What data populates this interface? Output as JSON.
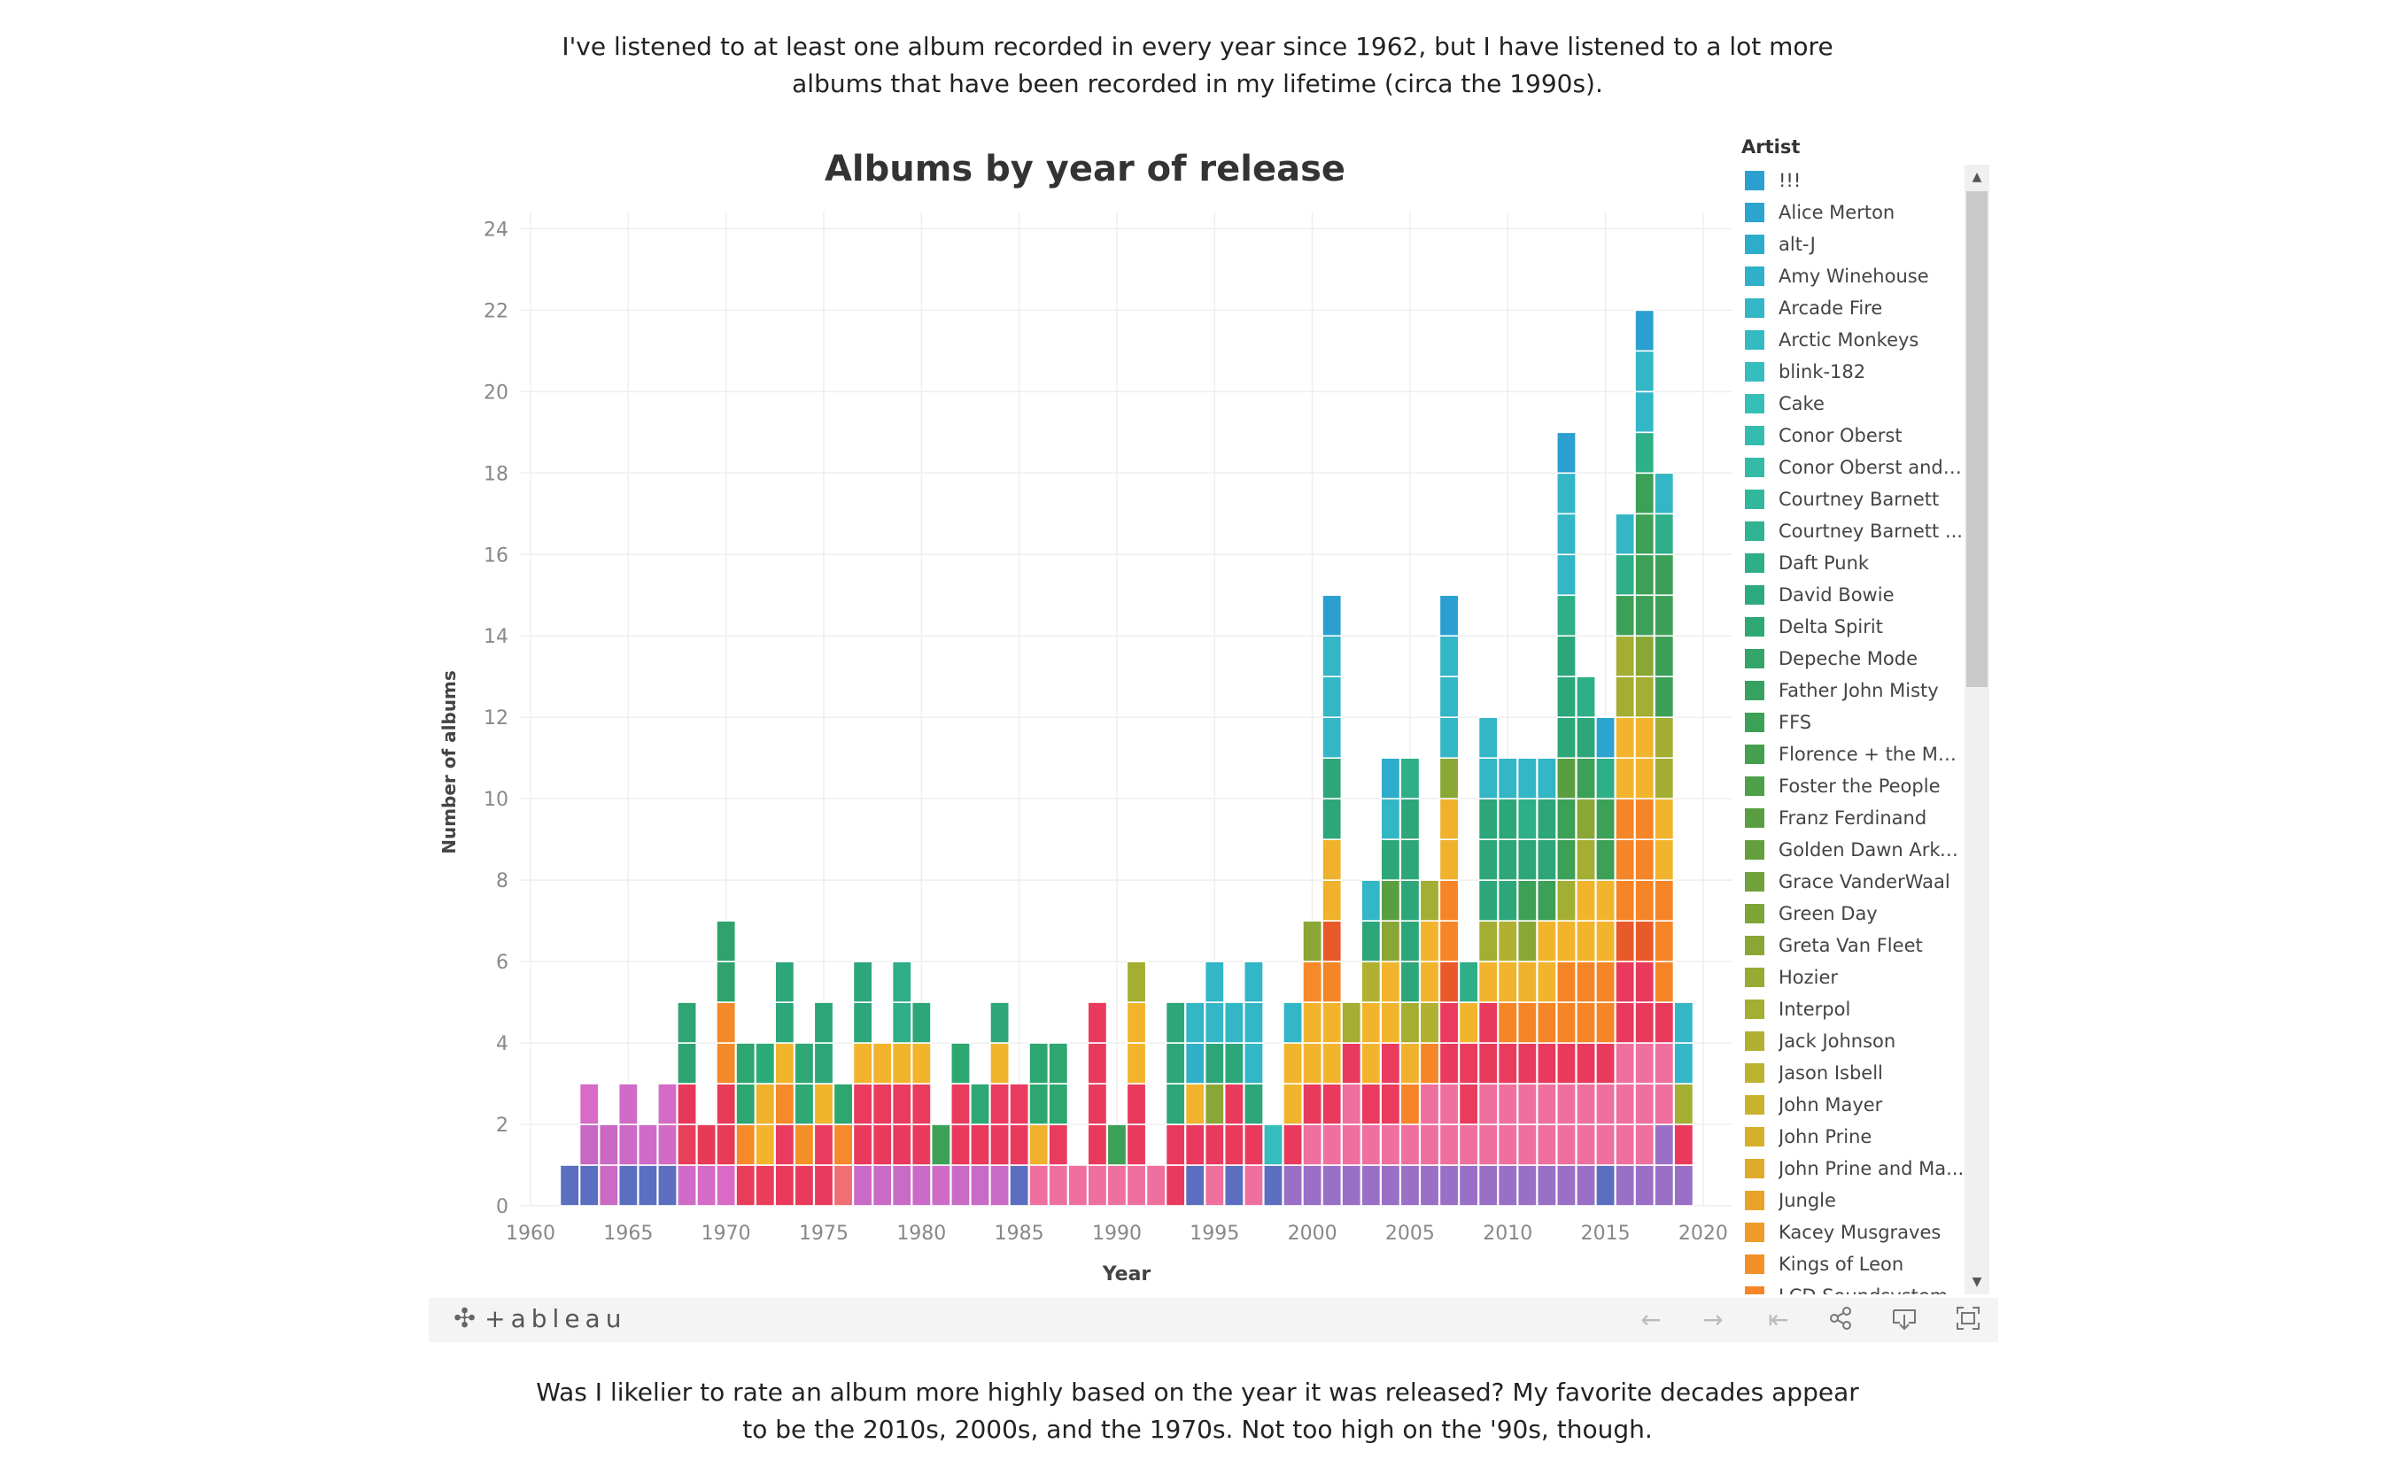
{
  "intro_text": "I've listened to at least one album recorded in every year since 1962, but I have listened to a lot more albums that have been recorded in my lifetime (circa the 1990s).",
  "outro_text": "Was I likelier to rate an album more highly based on the year it was released? My favorite decades appear to be the 2010s, 2000s, and the 1970s. Not too high on the '90s, though.",
  "legend": {
    "title": "Artist",
    "items": [
      {
        "label": "!!!",
        "color": "#2a9fd0"
      },
      {
        "label": "Alice Merton",
        "color": "#2ba5cf"
      },
      {
        "label": "alt-J",
        "color": "#2eaccc"
      },
      {
        "label": "Amy Winehouse",
        "color": "#30b1c9"
      },
      {
        "label": "Arcade Fire",
        "color": "#33b6c6"
      },
      {
        "label": "Arctic Monkeys",
        "color": "#35bac2"
      },
      {
        "label": "blink-182",
        "color": "#36bdbe"
      },
      {
        "label": "Cake",
        "color": "#36bfb7"
      },
      {
        "label": "Conor Oberst",
        "color": "#34bdae"
      },
      {
        "label": "Conor Oberst and t...",
        "color": "#33bba6"
      },
      {
        "label": "Courtney Barnett",
        "color": "#31b79c"
      },
      {
        "label": "Courtney Barnett ...",
        "color": "#2fb392"
      },
      {
        "label": "Daft Punk",
        "color": "#2eaf88"
      },
      {
        "label": "David Bowie",
        "color": "#2eab7e"
      },
      {
        "label": "Delta Spirit",
        "color": "#30a874"
      },
      {
        "label": "Depeche Mode",
        "color": "#33a56a"
      },
      {
        "label": "Father John Misty",
        "color": "#37a260"
      },
      {
        "label": "FFS",
        "color": "#3da057"
      },
      {
        "label": "Florence + the Mac...",
        "color": "#449f4f"
      },
      {
        "label": "Foster the People",
        "color": "#4e9f48"
      },
      {
        "label": "Franz Ferdinand",
        "color": "#599f42"
      },
      {
        "label": "Golden Dawn Arke...",
        "color": "#659f3d"
      },
      {
        "label": "Grace VanderWaal",
        "color": "#71a13a"
      },
      {
        "label": "Green Day",
        "color": "#7ea438"
      },
      {
        "label": "Greta Van Fleet",
        "color": "#8aa736"
      },
      {
        "label": "Hozier",
        "color": "#97ab34"
      },
      {
        "label": "Interpol",
        "color": "#a3ae32"
      },
      {
        "label": "Jack Johnson",
        "color": "#b0b130"
      },
      {
        "label": "Jason Isbell",
        "color": "#bdb22e"
      },
      {
        "label": "John Mayer",
        "color": "#c9b22d"
      },
      {
        "label": "John Prine",
        "color": "#d4b02c"
      },
      {
        "label": "John Prine and Ma...",
        "color": "#deab2b"
      },
      {
        "label": "Jungle",
        "color": "#e8a42a"
      },
      {
        "label": "Kacey Musgraves",
        "color": "#ef9b29"
      },
      {
        "label": "Kings of Leon",
        "color": "#f39028"
      },
      {
        "label": "LCD Soundsystem",
        "color": "#f58527"
      }
    ]
  },
  "chart_data": {
    "type": "bar",
    "stacked": true,
    "title": "Albums by year of release",
    "xlabel": "Year",
    "ylabel": "Number of albums",
    "xlim": [
      1959.5,
      2021.5
    ],
    "ylim": [
      0,
      24.4
    ],
    "x_ticks": [
      1960,
      1965,
      1970,
      1975,
      1980,
      1985,
      1990,
      1995,
      2000,
      2005,
      2010,
      2015,
      2020
    ],
    "y_ticks": [
      0,
      2,
      4,
      6,
      8,
      10,
      12,
      14,
      16,
      18,
      20,
      22,
      24
    ],
    "grid": true,
    "legend_position": "right",
    "bars": [
      {
        "year": 1962,
        "segments": [
          "#5b6ebf"
        ]
      },
      {
        "year": 1963,
        "segments": [
          "#5b6ebf",
          "#c967c4",
          "#d76bc6"
        ]
      },
      {
        "year": 1964,
        "segments": [
          "#cb6ac5",
          "#c969c5"
        ]
      },
      {
        "year": 1965,
        "segments": [
          "#5b6ebf",
          "#cc68c6",
          "#d06bc7"
        ]
      },
      {
        "year": 1966,
        "segments": [
          "#5b6ebf",
          "#cf6ac6"
        ]
      },
      {
        "year": 1967,
        "segments": [
          "#5b6ebf",
          "#d16bc6",
          "#d46cc6"
        ]
      },
      {
        "year": 1968,
        "segments": [
          "#d06bc7",
          "#e8405a",
          "#e8385a",
          "#2ea473",
          "#2fa474"
        ]
      },
      {
        "year": 1969,
        "segments": [
          "#d46bc6",
          "#e73a58"
        ]
      },
      {
        "year": 1970,
        "segments": [
          "#d96bc6",
          "#e73b57",
          "#e73b57",
          "#f38928",
          "#f38928",
          "#2fa36b",
          "#2fa36b"
        ]
      },
      {
        "year": 1971,
        "segments": [
          "#e83d5a",
          "#f68a2a",
          "#2ea66f",
          "#2ea66f"
        ]
      },
      {
        "year": 1972,
        "segments": [
          "#ea3d5b",
          "#f3b42d",
          "#f0b12c",
          "#2daa79"
        ]
      },
      {
        "year": 1973,
        "segments": [
          "#e93a5e",
          "#ea3b5f",
          "#f68a2a",
          "#f3b42d",
          "#2da67a",
          "#2da67a"
        ]
      },
      {
        "year": 1974,
        "segments": [
          "#e93a5e",
          "#f59028",
          "#2ea875",
          "#2ea875"
        ]
      },
      {
        "year": 1975,
        "segments": [
          "#e93a5e",
          "#ea3b5f",
          "#f3b42d",
          "#2da67a",
          "#2da67a"
        ]
      },
      {
        "year": 1976,
        "segments": [
          "#ef6f72",
          "#f68a2a",
          "#2ea66f"
        ]
      },
      {
        "year": 1977,
        "segments": [
          "#c96ac7",
          "#e93a5e",
          "#ea3b5f",
          "#f3b42d",
          "#2da67a",
          "#2da67a"
        ]
      },
      {
        "year": 1978,
        "segments": [
          "#c96ac7",
          "#e93a5e",
          "#ea3b5f",
          "#f3b42d"
        ]
      },
      {
        "year": 1979,
        "segments": [
          "#c96ac7",
          "#e93a5e",
          "#ea3b5f",
          "#f3b42d",
          "#2eaf88",
          "#2eaf88"
        ]
      },
      {
        "year": 1980,
        "segments": [
          "#c96ac7",
          "#e93a5e",
          "#ea3b5f",
          "#f3b42d",
          "#2da67a"
        ]
      },
      {
        "year": 1981,
        "segments": [
          "#d06bc7",
          "#3da057"
        ]
      },
      {
        "year": 1982,
        "segments": [
          "#c96ac7",
          "#e93a5e",
          "#ea3b5f",
          "#2ea66f"
        ]
      },
      {
        "year": 1983,
        "segments": [
          "#c96ac7",
          "#e93a5e",
          "#2ea875"
        ]
      },
      {
        "year": 1984,
        "segments": [
          "#c96ac7",
          "#e93a5e",
          "#ea3b5f",
          "#f3b42d",
          "#2da67a"
        ]
      },
      {
        "year": 1985,
        "segments": [
          "#5b6ebf",
          "#e93a5e",
          "#ea3b5f"
        ]
      },
      {
        "year": 1986,
        "segments": [
          "#ef6f9e",
          "#f0b12c",
          "#2ea66f",
          "#2ea66f"
        ]
      },
      {
        "year": 1987,
        "segments": [
          "#ef6f9e",
          "#ea3b5f",
          "#2ea66f",
          "#2ea66f"
        ]
      },
      {
        "year": 1988,
        "segments": [
          "#ef6f9e"
        ]
      },
      {
        "year": 1989,
        "segments": [
          "#ef6f9e",
          "#e93a5e",
          "#e93a5e",
          "#e93a5e",
          "#e93a5e"
        ]
      },
      {
        "year": 1990,
        "segments": [
          "#ef6f9e",
          "#3da057"
        ]
      },
      {
        "year": 1991,
        "segments": [
          "#ef6f9e",
          "#e93a5e",
          "#e93a5e",
          "#f3b42d",
          "#f3b42d",
          "#a3ae32"
        ]
      },
      {
        "year": 1992,
        "segments": [
          "#ef6f9e"
        ]
      },
      {
        "year": 1993,
        "segments": [
          "#e93a5e",
          "#e93a5e",
          "#2da67a",
          "#2da67a",
          "#2da67a"
        ]
      },
      {
        "year": 1994,
        "segments": [
          "#5b6ebf",
          "#e93a5e",
          "#f3b42d",
          "#30b1c9",
          "#33b6c6"
        ]
      },
      {
        "year": 1995,
        "segments": [
          "#ef6f9e",
          "#e93a5e",
          "#8aa736",
          "#2da67a",
          "#33b6c6",
          "#33b6c6"
        ]
      },
      {
        "year": 1996,
        "segments": [
          "#5b6ebf",
          "#e93a5e",
          "#e93a5e",
          "#2da67a",
          "#33b6c6"
        ]
      },
      {
        "year": 1997,
        "segments": [
          "#ef6f9e",
          "#e93a5e",
          "#2da67a",
          "#33b6c6",
          "#33b6c6",
          "#33b6c6"
        ]
      },
      {
        "year": 1998,
        "segments": [
          "#5b6ebf",
          "#36bdbe"
        ]
      },
      {
        "year": 1999,
        "segments": [
          "#9a6fc6",
          "#e93a5e",
          "#f3b42d",
          "#f3b42d",
          "#33b6c6"
        ]
      },
      {
        "year": 2000,
        "segments": [
          "#9a6fc6",
          "#ef6f9e",
          "#e93a5e",
          "#f3b42d",
          "#f3b42d",
          "#f68a2a",
          "#8aa736"
        ]
      },
      {
        "year": 2001,
        "segments": [
          "#9a6fc6",
          "#ef6f9e",
          "#e93a5e",
          "#f3b42d",
          "#f3b42d",
          "#f58527",
          "#e85a2a",
          "#f0b12c",
          "#f0b12c",
          "#2da67a",
          "#2da67a",
          "#33b6c6",
          "#33b6c6",
          "#33b6c6",
          "#2a9fd0"
        ]
      },
      {
        "year": 2002,
        "segments": [
          "#9a6fc6",
          "#ef6f9e",
          "#ef6f9e",
          "#e93a5e",
          "#a3ae32"
        ]
      },
      {
        "year": 2003,
        "segments": [
          "#9a6fc6",
          "#ef6f9e",
          "#ea3b5f",
          "#f3b42d",
          "#f3b42d",
          "#b0b130",
          "#2da67a",
          "#33b6c6"
        ]
      },
      {
        "year": 2004,
        "segments": [
          "#9a6fc6",
          "#ef6f9e",
          "#ea3b5f",
          "#ea3b5f",
          "#f3b42d",
          "#f3b42d",
          "#8aa736",
          "#599f42",
          "#2da67a",
          "#33b6c6",
          "#2eaccc"
        ]
      },
      {
        "year": 2005,
        "segments": [
          "#9a6fc6",
          "#ef6f9e",
          "#f58527",
          "#f0b12c",
          "#a3ae32",
          "#2da67a",
          "#2da67a",
          "#2da67a",
          "#2da67a",
          "#2da67a",
          "#2eaf88"
        ]
      },
      {
        "year": 2006,
        "segments": [
          "#9a6fc6",
          "#ef6f9e",
          "#ef6f9e",
          "#f58527",
          "#b0b130",
          "#f3b42d",
          "#f3b42d",
          "#a3ae32"
        ]
      },
      {
        "year": 2007,
        "segments": [
          "#9a6fc6",
          "#ef6f9e",
          "#ef6f9e",
          "#e93a5e",
          "#ea3b5f",
          "#e85a2a",
          "#f58527",
          "#f58527",
          "#f0b12c",
          "#f0b12c",
          "#8aa736",
          "#33b6c6",
          "#33b6c6",
          "#33b6c6",
          "#2a9fd0"
        ]
      },
      {
        "year": 2008,
        "segments": [
          "#9a6fc6",
          "#ef6f9e",
          "#ea3b5f",
          "#ea3b5f",
          "#f3b42d",
          "#2eaf88"
        ]
      },
      {
        "year": 2009,
        "segments": [
          "#9a6fc6",
          "#ef6f9e",
          "#ef6f9e",
          "#e93a5e",
          "#e93a5e",
          "#f3b42d",
          "#a3ae32",
          "#2da67a",
          "#2da67a",
          "#2da67a",
          "#33b6c6",
          "#33b6c6"
        ]
      },
      {
        "year": 2010,
        "segments": [
          "#9a6fc6",
          "#ef6f9e",
          "#ef6f9e",
          "#ea3b5f",
          "#f58527",
          "#f3b42d",
          "#b0b130",
          "#2da67a",
          "#2da67a",
          "#2da67a",
          "#33b6c6"
        ]
      },
      {
        "year": 2011,
        "segments": [
          "#9a6fc6",
          "#ef6f9e",
          "#ef6f9e",
          "#e93a5e",
          "#f58527",
          "#f0b12c",
          "#8aa736",
          "#3da057",
          "#2da67a",
          "#2eaf88",
          "#33b6c6"
        ]
      },
      {
        "year": 2012,
        "segments": [
          "#9a6fc6",
          "#ef6f9e",
          "#ef6f9e",
          "#e93a5e",
          "#f58527",
          "#f3b42d",
          "#f3b42d",
          "#3da057",
          "#2da67a",
          "#2da67a",
          "#33b6c6"
        ]
      },
      {
        "year": 2013,
        "segments": [
          "#9a6fc6",
          "#ef6f9e",
          "#ef6f9e",
          "#e93a5e",
          "#f58527",
          "#f58527",
          "#f3b42d",
          "#a3ae32",
          "#3da057",
          "#3da057",
          "#599f42",
          "#2da67a",
          "#2da67a",
          "#2da67a",
          "#2eaf88",
          "#33b6c6",
          "#33b6c6",
          "#33b6c6",
          "#2a9fd0"
        ]
      },
      {
        "year": 2014,
        "segments": [
          "#9a6fc6",
          "#ef6f9e",
          "#ef6f9e",
          "#e93a5e",
          "#f58527",
          "#f58527",
          "#f3b42d",
          "#f3b42d",
          "#a3ae32",
          "#8aa736",
          "#3da057",
          "#2da67a",
          "#2eaf88"
        ]
      },
      {
        "year": 2015,
        "segments": [
          "#5b6ebf",
          "#ef6f9e",
          "#ef6f9e",
          "#e93a5e",
          "#f58527",
          "#f58527",
          "#f3b42d",
          "#f3b42d",
          "#3da057",
          "#3da057",
          "#2eaf88",
          "#2ba5cf"
        ]
      },
      {
        "year": 2016,
        "segments": [
          "#9a6fc6",
          "#ef6f9e",
          "#ef6f9e",
          "#ef6f9e",
          "#e93a5e",
          "#e93a5e",
          "#e85a2a",
          "#f58527",
          "#f58527",
          "#f58527",
          "#f3b42d",
          "#f3b42d",
          "#a3ae32",
          "#a3ae32",
          "#3da057",
          "#2eaf88",
          "#33b6c6"
        ]
      },
      {
        "year": 2017,
        "segments": [
          "#9a6fc6",
          "#ef6f9e",
          "#ef6f9e",
          "#ef6f9e",
          "#e93a5e",
          "#e93a5e",
          "#e85a2a",
          "#f58527",
          "#f58527",
          "#f58527",
          "#f3b42d",
          "#f3b42d",
          "#a3ae32",
          "#8aa736",
          "#3da057",
          "#3da057",
          "#3da057",
          "#3da057",
          "#2eaf88",
          "#33b6c6",
          "#33b6c6",
          "#2a9fd0"
        ]
      },
      {
        "year": 2018,
        "segments": [
          "#9a6fc6",
          "#9a6fc6",
          "#ef6f9e",
          "#ef6f9e",
          "#e93a5e",
          "#f58527",
          "#f58527",
          "#f58527",
          "#f3b42d",
          "#f3b42d",
          "#a3ae32",
          "#a3ae32",
          "#3da057",
          "#3da057",
          "#3da057",
          "#3da057",
          "#2eaf88",
          "#33b6c6"
        ]
      },
      {
        "year": 2019,
        "segments": [
          "#9a6fc6",
          "#e93a5e",
          "#a3ae32",
          "#33b6c6",
          "#33b6c6"
        ]
      }
    ]
  }
}
